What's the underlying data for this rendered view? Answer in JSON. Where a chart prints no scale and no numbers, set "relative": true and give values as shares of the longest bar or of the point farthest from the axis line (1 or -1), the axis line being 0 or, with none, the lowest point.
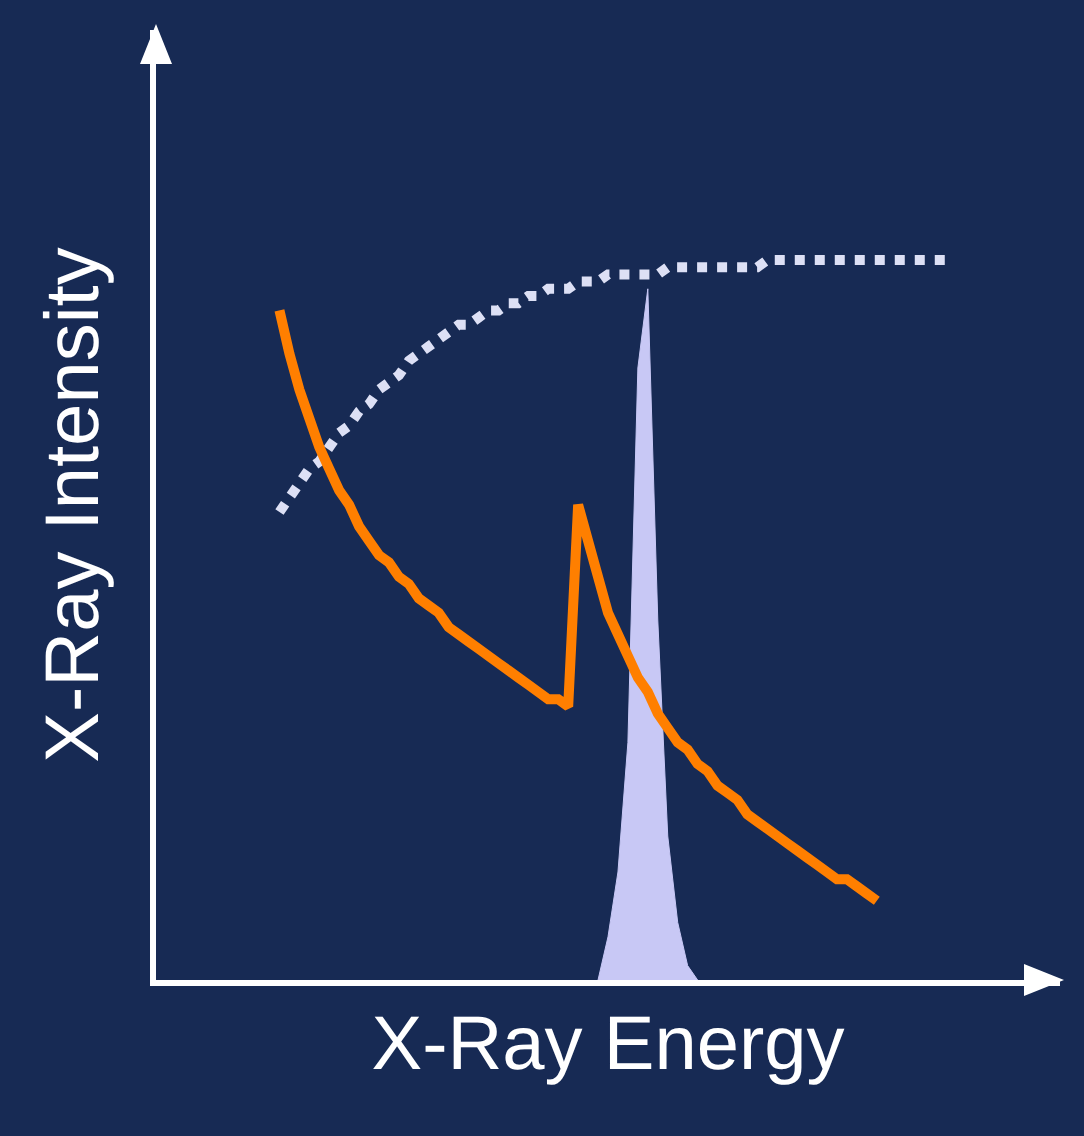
{
  "chart_data": {
    "type": "line",
    "relative": true,
    "xlabel": "X-Ray Energy",
    "ylabel": "X-Ray Intensity",
    "legend": false,
    "categories": [
      null,
      null,
      null,
      null,
      null,
      null,
      null,
      null,
      null,
      null,
      null,
      null,
      null,
      null,
      null,
      null,
      null,
      null,
      null,
      null,
      null,
      null,
      null,
      null,
      null,
      null,
      null,
      null,
      null,
      null,
      null,
      null,
      null,
      null,
      null,
      null,
      null,
      null,
      null,
      null,
      null,
      null,
      null,
      null,
      null,
      null,
      null,
      null,
      null,
      null,
      null,
      null,
      null,
      null,
      null,
      null,
      null,
      null,
      null,
      null,
      null,
      null,
      null,
      null,
      null,
      null,
      null,
      null,
      null,
      null,
      null,
      null,
      null,
      null,
      null,
      null,
      null,
      null,
      null,
      null,
      null,
      null,
      null,
      null,
      null,
      null,
      null,
      null,
      null,
      null
    ],
    "series": [
      {
        "type": "area",
        "color": "#c8c8f5",
        "values": [
          null,
          null,
          null,
          null,
          null,
          null,
          null,
          null,
          null,
          null,
          null,
          null,
          null,
          null,
          null,
          null,
          null,
          null,
          null,
          null,
          null,
          null,
          null,
          null,
          null,
          null,
          null,
          null,
          null,
          null,
          null,
          null,
          null,
          null,
          null,
          null,
          null,
          null,
          null,
          null,
          null,
          null,
          null,
          null,
          0,
          0.06,
          0.15,
          0.33,
          0.85,
          0.96,
          0.5,
          0.2,
          0.08,
          0.02,
          0,
          null,
          null,
          null,
          null,
          null,
          null,
          null,
          null,
          null,
          null,
          null,
          null,
          null,
          null,
          null,
          null,
          null,
          null,
          null,
          null,
          null,
          null,
          null,
          null,
          null,
          null,
          null,
          null,
          null,
          null,
          null,
          null,
          null,
          null,
          null
        ]
      },
      {
        "color": "#dde0f5",
        "line_style": "dotted",
        "values": [
          null,
          null,
          null,
          null,
          null,
          null,
          null,
          null,
          null,
          null,
          null,
          null,
          0.65,
          0.67,
          0.69,
          0.71,
          0.72,
          0.74,
          0.76,
          0.77,
          0.79,
          0.8,
          0.82,
          0.83,
          0.84,
          0.86,
          0.87,
          0.88,
          0.89,
          0.9,
          0.91,
          0.91,
          0.92,
          0.93,
          0.93,
          0.94,
          0.94,
          0.95,
          0.95,
          0.96,
          0.96,
          0.96,
          0.97,
          0.97,
          0.97,
          0.98,
          0.98,
          0.98,
          0.98,
          0.98,
          0.98,
          0.99,
          0.99,
          0.99,
          0.99,
          0.99,
          0.99,
          0.99,
          0.99,
          0.99,
          0.99,
          1,
          1,
          1,
          1,
          1,
          1,
          1,
          1,
          1,
          1,
          1,
          1,
          1,
          1,
          1,
          1,
          1,
          1,
          1,
          null,
          null,
          null,
          null,
          null,
          null,
          null,
          null,
          null,
          null
        ]
      },
      {
        "color": "#ff7f00",
        "line_style": "solid",
        "values": [
          null,
          null,
          null,
          null,
          null,
          null,
          null,
          null,
          null,
          null,
          null,
          null,
          0.93,
          0.87,
          0.82,
          0.78,
          0.74,
          0.71,
          0.68,
          0.66,
          0.63,
          0.61,
          0.59,
          0.58,
          0.56,
          0.55,
          0.53,
          0.52,
          0.51,
          0.49,
          0.48,
          0.47,
          0.46,
          0.45,
          0.44,
          0.43,
          0.42,
          0.41,
          0.4,
          0.39,
          0.39,
          0.38,
          0.66,
          0.61,
          0.56,
          0.51,
          0.48,
          0.45,
          0.42,
          0.4,
          0.37,
          0.35,
          0.33,
          0.32,
          0.3,
          0.29,
          0.27,
          0.26,
          0.25,
          0.23,
          0.22,
          0.21,
          0.2,
          0.19,
          0.18,
          0.17,
          0.16,
          0.15,
          0.14,
          0.14,
          0.13,
          0.12,
          0.11,
          null,
          null,
          null,
          null,
          null,
          null,
          null,
          null,
          null,
          null,
          null,
          null,
          null,
          null,
          null,
          null,
          null
        ]
      }
    ]
  }
}
